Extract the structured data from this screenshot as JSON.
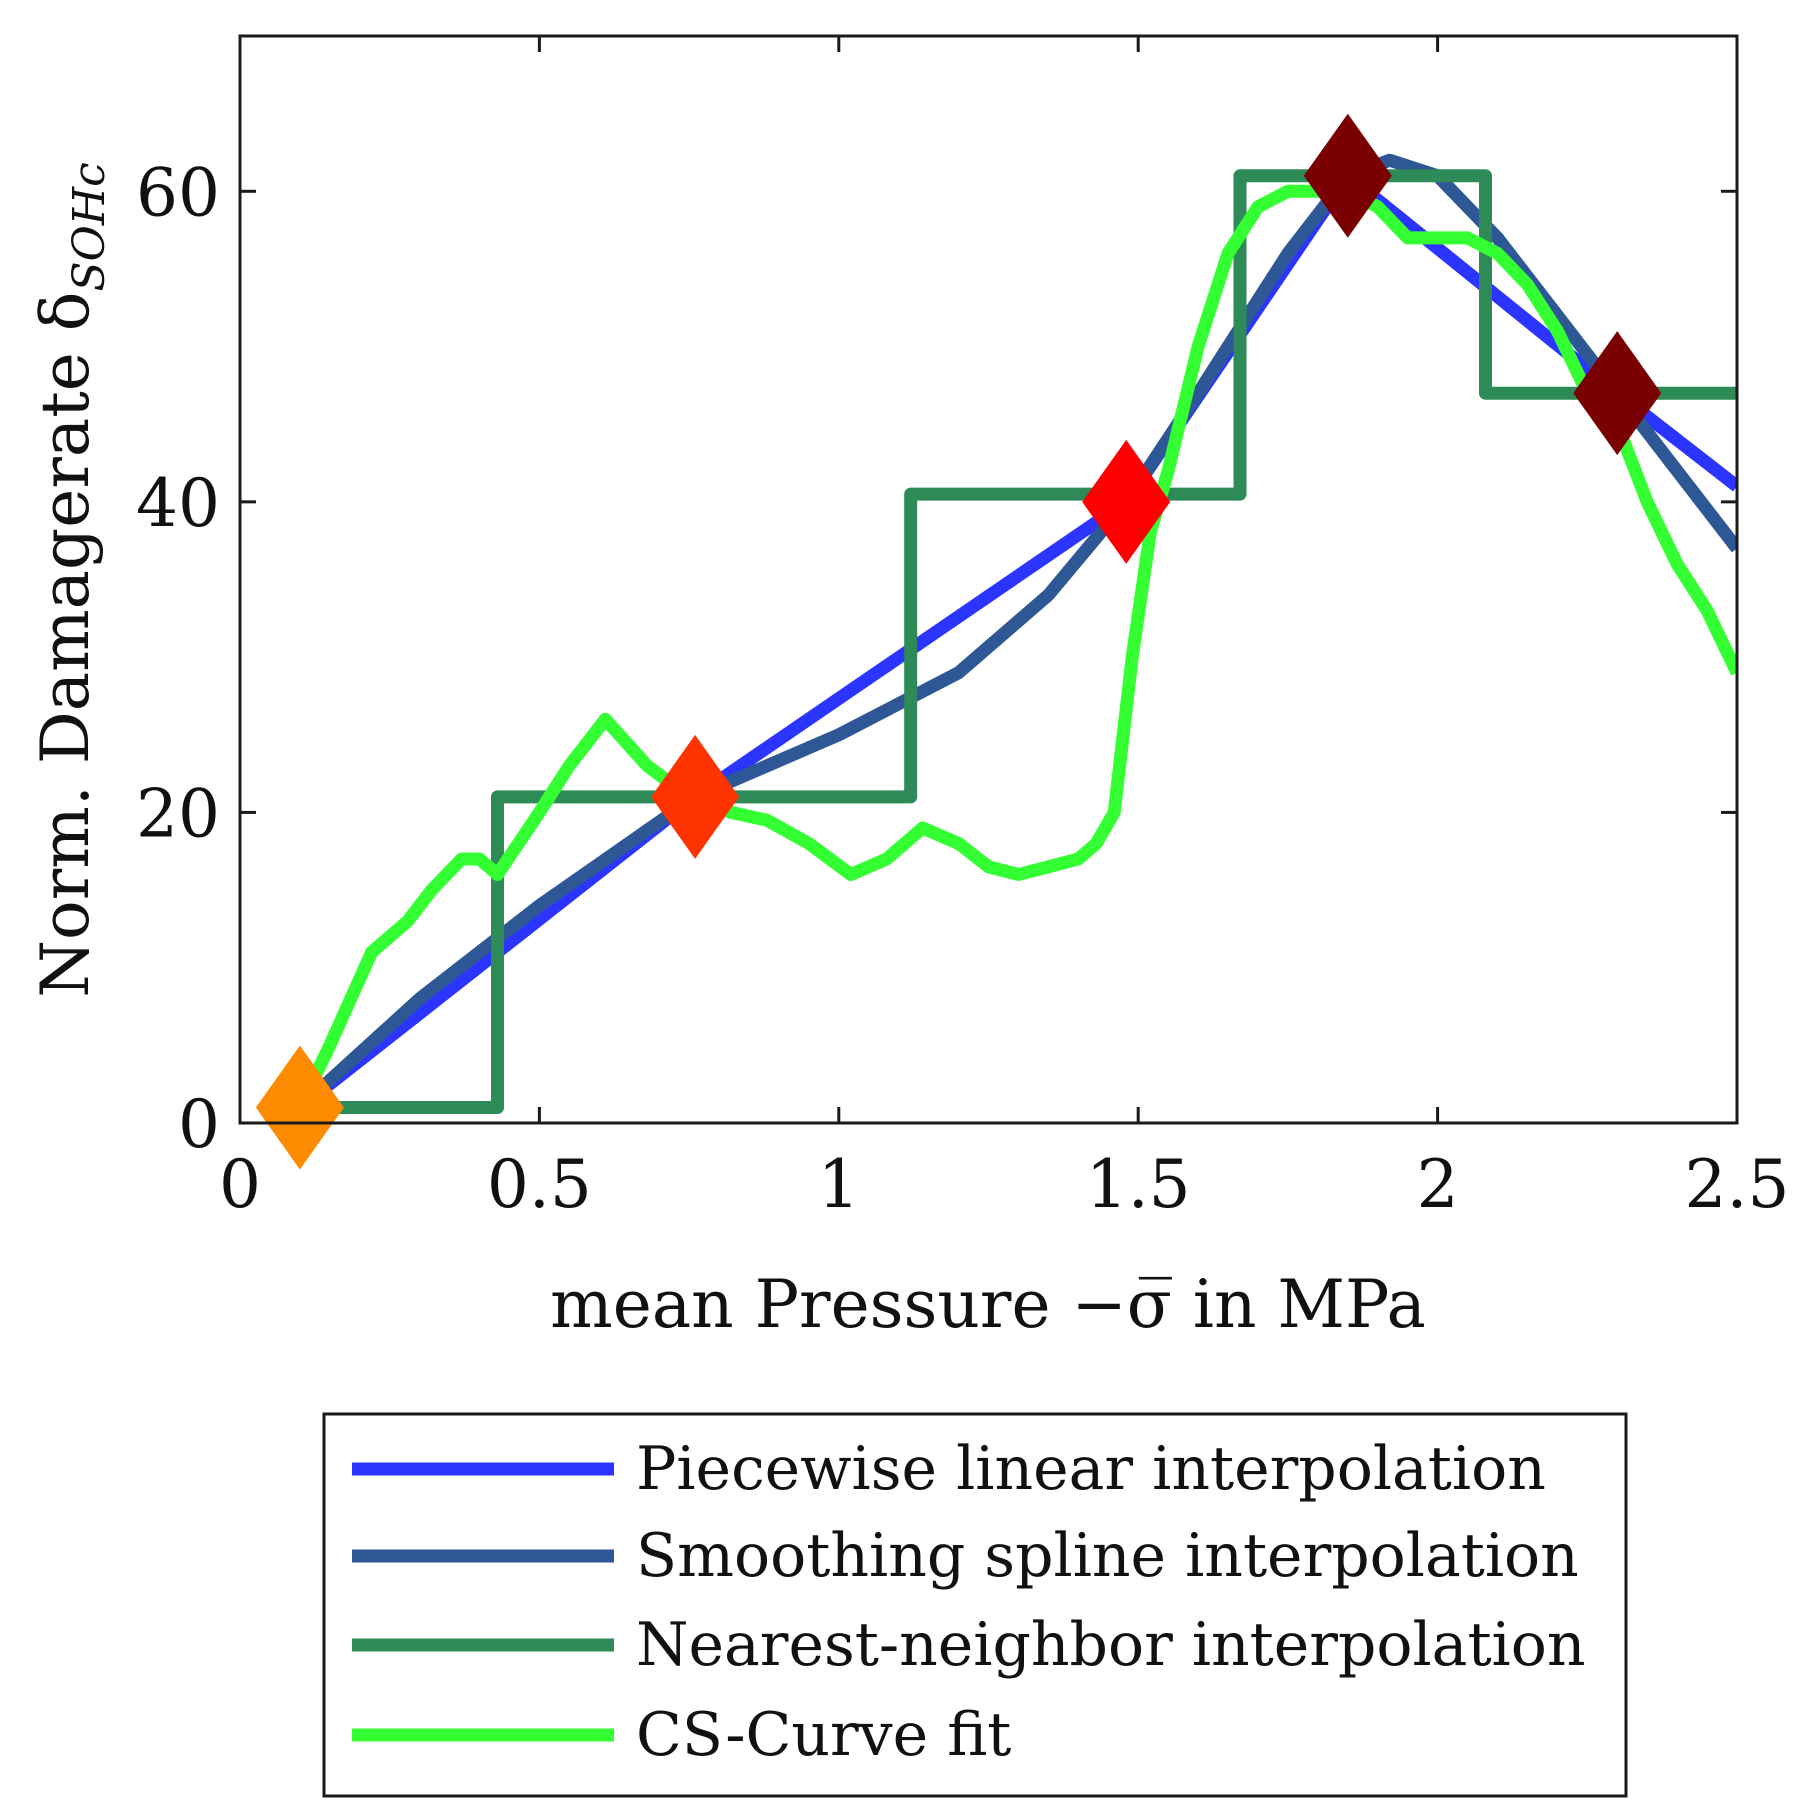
{
  "chart_data": {
    "type": "line",
    "title": "",
    "xlabel": "mean Pressure −σ̅ in MPa",
    "ylabel": "Norm. Damagerate δ_SOHc",
    "ylabel_main": "Norm. Damagerate δ",
    "ylabel_sub": "SOHc",
    "xlim": [
      0,
      2.5
    ],
    "ylim": [
      0,
      70
    ],
    "xticks": [
      0,
      0.5,
      1,
      1.5,
      2,
      2.5
    ],
    "xtick_labels": [
      "0",
      "0.5",
      "1",
      "1.5",
      "2",
      "2.5"
    ],
    "yticks": [
      0,
      20,
      40,
      60
    ],
    "ytick_labels": [
      "0",
      "20",
      "40",
      "60"
    ],
    "grid": false,
    "legend_position": "bottom-outside",
    "series": [
      {
        "name": "Piecewise linear interpolation",
        "color": "#2b35ff",
        "x": [
          0.1,
          0.76,
          1.48,
          1.85,
          2.3,
          2.5
        ],
        "y": [
          1,
          21,
          40,
          61,
          47,
          41
        ]
      },
      {
        "name": "Smoothing spline interpolation",
        "color": "#2e5796",
        "x": [
          0.1,
          0.3,
          0.5,
          0.76,
          1.0,
          1.2,
          1.35,
          1.48,
          1.6,
          1.75,
          1.85,
          1.92,
          2.0,
          2.1,
          2.2,
          2.3,
          2.4,
          2.5
        ],
        "y": [
          1,
          8,
          14,
          21,
          25,
          29,
          34,
          40,
          47,
          56,
          61,
          62,
          61,
          57,
          52,
          47,
          42,
          37
        ]
      },
      {
        "name": "Nearest-neighbor interpolation",
        "color": "#2e8b57",
        "x": [
          0.1,
          0.43,
          0.43,
          1.12,
          1.12,
          1.67,
          1.67,
          2.08,
          2.08,
          2.5
        ],
        "y": [
          1,
          1,
          21,
          21,
          40.5,
          40.5,
          61,
          61,
          47,
          47
        ]
      },
      {
        "name": "CS-Curve fit",
        "color": "#33ff33",
        "x": [
          0.1,
          0.15,
          0.22,
          0.25,
          0.28,
          0.32,
          0.37,
          0.4,
          0.43,
          0.5,
          0.55,
          0.61,
          0.68,
          0.75,
          0.82,
          0.88,
          0.95,
          1.02,
          1.08,
          1.14,
          1.2,
          1.25,
          1.3,
          1.35,
          1.4,
          1.43,
          1.46,
          1.49,
          1.52,
          1.55,
          1.6,
          1.65,
          1.7,
          1.75,
          1.8,
          1.85,
          1.9,
          1.95,
          2.0,
          2.05,
          2.1,
          2.15,
          2.2,
          2.25,
          2.3,
          2.35,
          2.4,
          2.45,
          2.5
        ],
        "y": [
          1,
          5,
          11,
          12,
          13,
          15,
          17,
          17,
          16,
          20,
          23,
          26,
          23,
          21,
          20,
          19.5,
          18,
          16,
          17,
          19,
          18,
          16.5,
          16,
          16.5,
          17,
          18,
          20,
          30,
          38,
          42,
          50,
          56,
          59,
          60,
          60,
          60,
          59,
          57,
          57,
          57,
          56,
          54,
          51,
          47,
          45,
          40,
          36,
          33,
          29
        ]
      }
    ],
    "markers": [
      {
        "x": 0.1,
        "y": 1,
        "color": "#ff8c00"
      },
      {
        "x": 0.76,
        "y": 21,
        "color": "#ff3300"
      },
      {
        "x": 1.48,
        "y": 40,
        "color": "#ff0000"
      },
      {
        "x": 1.85,
        "y": 61,
        "color": "#7a0000"
      },
      {
        "x": 2.3,
        "y": 47,
        "color": "#7a0000"
      }
    ]
  }
}
